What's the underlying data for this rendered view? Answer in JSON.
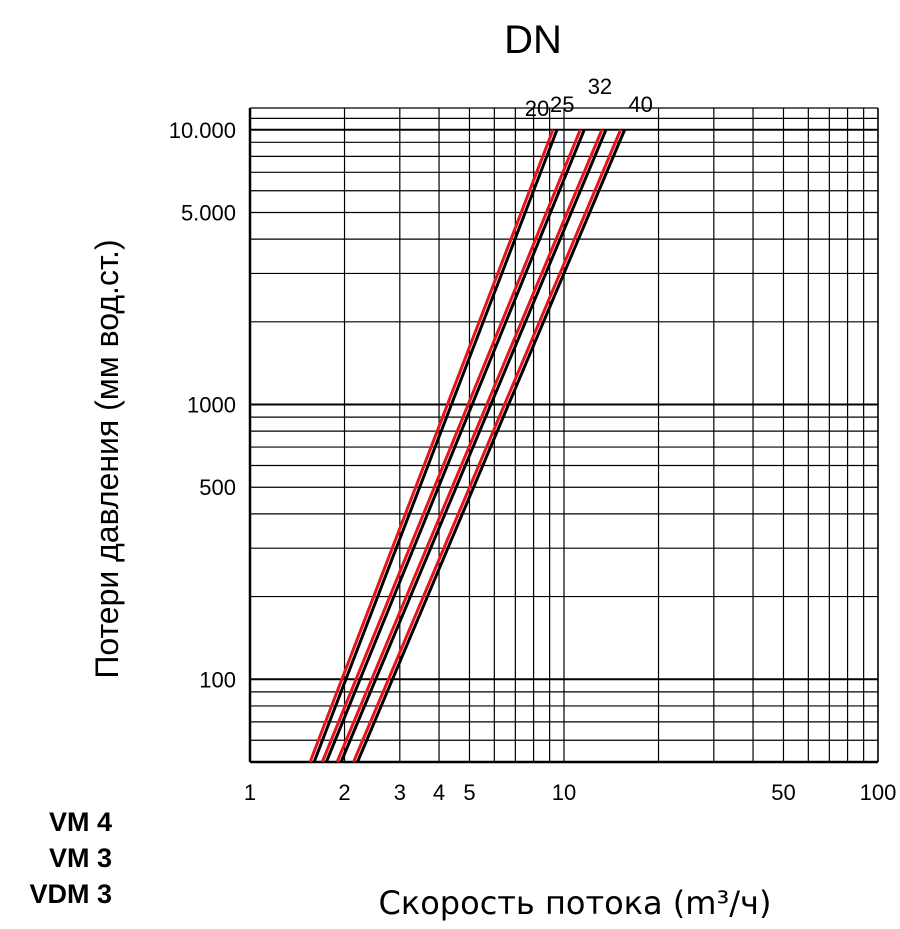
{
  "chart_data": {
    "type": "line",
    "title": "DN",
    "xlabel": "Скорость потока (m³/ч)",
    "ylabel": "Потери давления (мм вод.ст.)",
    "xscale": "log",
    "yscale": "log",
    "xlim": [
      1,
      100
    ],
    "ylim": [
      50,
      12000
    ],
    "grid": true,
    "x_ticks": [
      {
        "value": 1,
        "label": "1"
      },
      {
        "value": 2,
        "label": "2"
      },
      {
        "value": 3,
        "label": "3"
      },
      {
        "value": 4,
        "label": "4"
      },
      {
        "value": 5,
        "label": "5"
      },
      {
        "value": 10,
        "label": "10"
      },
      {
        "value": 50,
        "label": "50"
      },
      {
        "value": 100,
        "label": "100"
      }
    ],
    "y_ticks": [
      {
        "value": 100,
        "label": "100"
      },
      {
        "value": 500,
        "label": "500"
      },
      {
        "value": 1000,
        "label": "1000"
      },
      {
        "value": 5000,
        "label": "5.000"
      },
      {
        "value": 10000,
        "label": "10.000"
      }
    ],
    "series": [
      {
        "name": "20",
        "x": [
          1.6,
          9.5
        ],
        "y": [
          50,
          10000
        ],
        "color": "#e8141b"
      },
      {
        "name": "25",
        "x": [
          1.75,
          11.6
        ],
        "y": [
          50,
          10000
        ],
        "color": "#e8141b"
      },
      {
        "name": "32",
        "x": [
          1.95,
          13.6
        ],
        "y": [
          50,
          10000
        ],
        "color": "#e8141b"
      },
      {
        "name": "40",
        "x": [
          2.2,
          15.6
        ],
        "y": [
          50,
          10000
        ],
        "color": "#e8141b"
      }
    ]
  },
  "models": [
    "VM 4",
    "VM 3",
    "VDM 3"
  ]
}
